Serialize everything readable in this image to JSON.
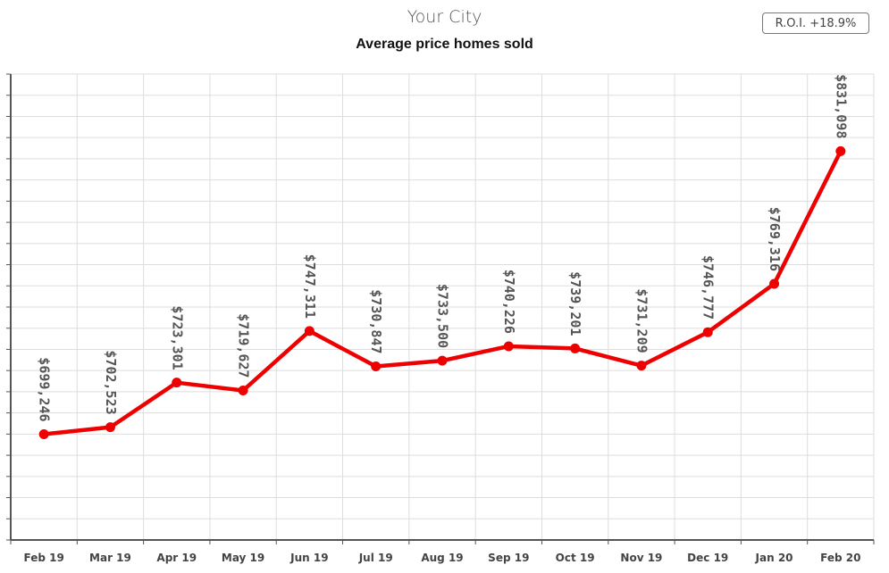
{
  "header": {
    "title": "Your City",
    "subtitle": "Average price homes sold",
    "roi_badge": "R.O.I. +18.9%"
  },
  "colors": {
    "series": "#ee0000",
    "grid": "#dddddd",
    "axis": "#555555"
  },
  "chart_data": {
    "type": "line",
    "title": "Average price homes sold",
    "xlabel": "",
    "ylabel": "",
    "categories": [
      "Feb 19",
      "Mar 19",
      "Apr 19",
      "May 19",
      "Jun 19",
      "Jul 19",
      "Aug 19",
      "Sep 19",
      "Oct 19",
      "Nov 19",
      "Dec 19",
      "Jan 20",
      "Feb 20"
    ],
    "series": [
      {
        "values": [
          699246,
          702523,
          723301,
          719627,
          747311,
          730847,
          733500,
          740226,
          739201,
          731209,
          746777,
          769316,
          831098
        ],
        "labels": [
          "$699,246",
          "$702,523",
          "$723,301",
          "$719,627",
          "$747,311",
          "$730,847",
          "$733,500",
          "$740,226",
          "$739,201",
          "$731,209",
          "$746,777",
          "$769,316",
          "$831,098"
        ]
      }
    ],
    "ylim": [
      650000,
      867000
    ],
    "grid": true,
    "y_tick_labels_visible": false
  }
}
